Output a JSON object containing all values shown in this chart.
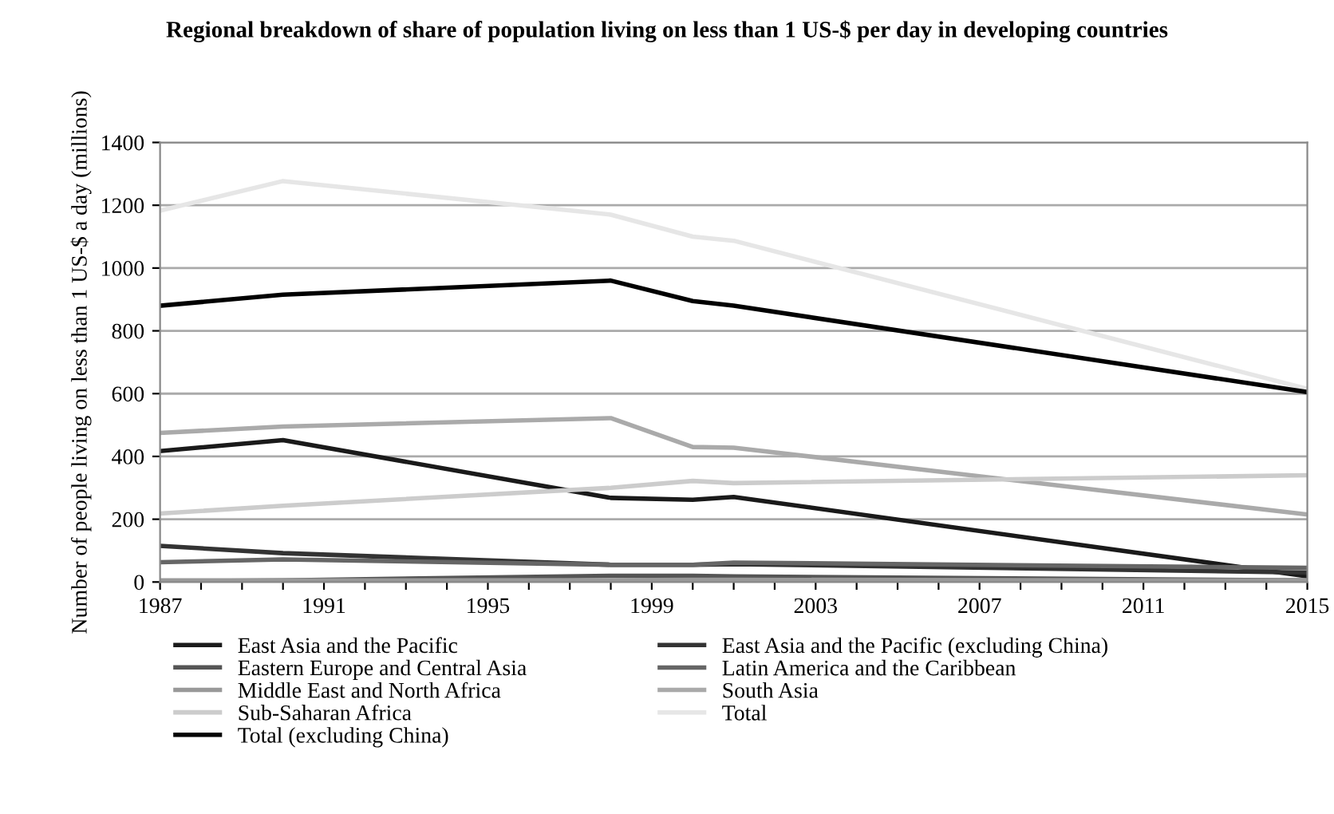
{
  "chart_data": {
    "type": "line",
    "title": "Regional breakdown of share of population living on less than 1 US-$ per day in developing countries",
    "ylabel": "Number of people living on less than 1 US-$ a day (millions)",
    "x": [
      1987,
      1990,
      1998,
      2000,
      2001,
      2015
    ],
    "series": [
      {
        "name": "East Asia and the Pacific",
        "color": "#1a1a1a",
        "values": [
          417,
          452,
          268,
          262,
          271,
          18
        ]
      },
      {
        "name": "East Asia and the Pacific (excluding China)",
        "color": "#333333",
        "values": [
          115,
          92,
          55,
          55,
          57,
          30
        ]
      },
      {
        "name": "Eastern Europe and Central Asia",
        "color": "#555555",
        "values": [
          2,
          5,
          20,
          20,
          18,
          5
        ]
      },
      {
        "name": "Latin America and the Caribbean",
        "color": "#666666",
        "values": [
          63,
          72,
          55,
          55,
          62,
          45
        ]
      },
      {
        "name": "Middle East and North Africa",
        "color": "#999999",
        "values": [
          5,
          5,
          6,
          7,
          7,
          5
        ]
      },
      {
        "name": "South Asia",
        "color": "#aaaaaa",
        "values": [
          475,
          495,
          522,
          430,
          428,
          215
        ]
      },
      {
        "name": "Sub-Saharan Africa",
        "color": "#cccccc",
        "values": [
          218,
          243,
          300,
          322,
          315,
          340
        ]
      },
      {
        "name": "Total",
        "color": "#e6e6e6",
        "values": [
          1183,
          1277,
          1170,
          1100,
          1087,
          615
        ]
      },
      {
        "name": "Total (excluding China)",
        "color": "#000000",
        "values": [
          880,
          915,
          960,
          895,
          880,
          605
        ]
      }
    ],
    "xlim": [
      1987,
      2015
    ],
    "xticks": [
      1987,
      {
        "value": 1988,
        "label": null
      },
      {
        "value": 1989,
        "label": null
      },
      {
        "value": 1990,
        "label": null
      },
      1991,
      {
        "value": 1992,
        "label": null
      },
      {
        "value": 1993,
        "label": null
      },
      {
        "value": 1994,
        "label": null
      },
      1995,
      {
        "value": 1996,
        "label": null
      },
      {
        "value": 1997,
        "label": null
      },
      {
        "value": 1998,
        "label": null
      },
      1999,
      {
        "value": 2000,
        "label": null
      },
      {
        "value": 2001,
        "label": null
      },
      {
        "value": 2002,
        "label": null
      },
      2003,
      {
        "value": 2004,
        "label": null
      },
      {
        "value": 2005,
        "label": null
      },
      {
        "value": 2006,
        "label": null
      },
      2007,
      {
        "value": 2008,
        "label": null
      },
      {
        "value": 2009,
        "label": null
      },
      {
        "value": 2010,
        "label": null
      },
      2011,
      {
        "value": 2012,
        "label": null
      },
      {
        "value": 2013,
        "label": null
      },
      {
        "value": 2014,
        "label": null
      },
      2015
    ],
    "ylim": [
      0,
      1400
    ],
    "yticks": [
      0,
      200,
      400,
      600,
      800,
      1000,
      1200,
      1400
    ],
    "grid": "y",
    "legend": "bottom",
    "marker": "none",
    "line_style": "solid"
  }
}
